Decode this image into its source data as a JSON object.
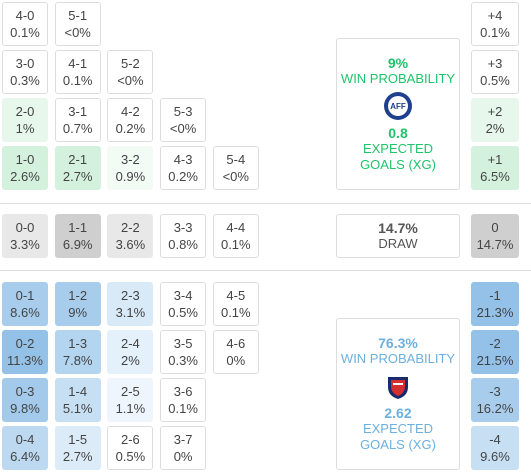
{
  "sections": [
    {
      "rows": [
        [
          {
            "score": "4-0",
            "prob": "0.1%"
          },
          {
            "score": "5-1",
            "prob": "<0%"
          }
        ],
        [
          {
            "score": "3-0",
            "prob": "0.3%"
          },
          {
            "score": "4-1",
            "prob": "0.1%"
          },
          {
            "score": "5-2",
            "prob": "<0%"
          }
        ],
        [
          {
            "score": "2-0",
            "prob": "1%",
            "color": "#e7f7ec"
          },
          {
            "score": "3-1",
            "prob": "0.7%"
          },
          {
            "score": "4-2",
            "prob": "0.2%"
          },
          {
            "score": "5-3",
            "prob": "<0%"
          }
        ],
        [
          {
            "score": "1-0",
            "prob": "2.6%",
            "color": "#d4f1dd"
          },
          {
            "score": "2-1",
            "prob": "2.7%",
            "color": "#d4f1dd"
          },
          {
            "score": "3-2",
            "prob": "0.9%",
            "color": "#f3fbf5"
          },
          {
            "score": "4-3",
            "prob": "0.2%"
          },
          {
            "score": "5-4",
            "prob": "<0%"
          }
        ]
      ],
      "margins": [
        {
          "score": "+4",
          "prob": "0.1%"
        },
        {
          "score": "+3",
          "prob": "0.5%"
        },
        {
          "score": "+2",
          "prob": "2%",
          "color": "#e7f7ec"
        },
        {
          "score": "+1",
          "prob": "6.5%",
          "color": "#d4f1dd"
        }
      ],
      "summary": {
        "probability": "9%",
        "label": "WIN PROBABILITY",
        "xg": "0.8",
        "xg_label": "EXPECTED GOALS (XG)",
        "color": "#1ec46a"
      }
    },
    {
      "rows": [
        [
          {
            "score": "0-0",
            "prob": "3.3%",
            "color": "#e8e8e8"
          },
          {
            "score": "1-1",
            "prob": "6.9%",
            "color": "#cfcfcf"
          },
          {
            "score": "2-2",
            "prob": "3.6%",
            "color": "#e8e8e8"
          },
          {
            "score": "3-3",
            "prob": "0.8%"
          },
          {
            "score": "4-4",
            "prob": "0.1%"
          }
        ]
      ],
      "margins": [
        {
          "score": "0",
          "prob": "14.7%",
          "color": "#cfcfcf"
        }
      ],
      "summary": {
        "probability": "14.7%",
        "label": "DRAW",
        "color": "#555555"
      }
    },
    {
      "rows": [
        [
          {
            "score": "0-1",
            "prob": "8.6%",
            "color": "#a8cdec"
          },
          {
            "score": "1-2",
            "prob": "9%",
            "color": "#a8cdec"
          },
          {
            "score": "2-3",
            "prob": "3.1%",
            "color": "#d8e9f7"
          },
          {
            "score": "3-4",
            "prob": "0.5%"
          },
          {
            "score": "4-5",
            "prob": "0.1%"
          }
        ],
        [
          {
            "score": "0-2",
            "prob": "11.3%",
            "color": "#93c1e8"
          },
          {
            "score": "1-3",
            "prob": "7.8%",
            "color": "#b4d5ef"
          },
          {
            "score": "2-4",
            "prob": "2%",
            "color": "#e4f0fa"
          },
          {
            "score": "3-5",
            "prob": "0.3%"
          },
          {
            "score": "4-6",
            "prob": "0%"
          }
        ],
        [
          {
            "score": "0-3",
            "prob": "9.8%",
            "color": "#a3caeb"
          },
          {
            "score": "1-4",
            "prob": "5.1%",
            "color": "#c6dff3"
          },
          {
            "score": "2-5",
            "prob": "1.1%",
            "color": "#eef5fc"
          },
          {
            "score": "3-6",
            "prob": "0.1%"
          }
        ],
        [
          {
            "score": "0-4",
            "prob": "6.4%",
            "color": "#bcd9f1"
          },
          {
            "score": "1-5",
            "prob": "2.7%",
            "color": "#dcebf8"
          },
          {
            "score": "2-6",
            "prob": "0.5%"
          },
          {
            "score": "3-7",
            "prob": "0%"
          }
        ]
      ],
      "margins": [
        {
          "score": "-1",
          "prob": "21.3%",
          "color": "#93c1e8"
        },
        {
          "score": "-2",
          "prob": "21.5%",
          "color": "#93c1e8"
        },
        {
          "score": "-3",
          "prob": "16.2%",
          "color": "#a8cdec"
        },
        {
          "score": "-4",
          "prob": "9.6%",
          "color": "#c6dff3"
        }
      ],
      "summary": {
        "probability": "76.3%",
        "label": "WIN PROBABILITY",
        "xg": "2.62",
        "xg_label": "EXPECTED GOALS (XG)",
        "color": "#6cb0de"
      }
    }
  ]
}
